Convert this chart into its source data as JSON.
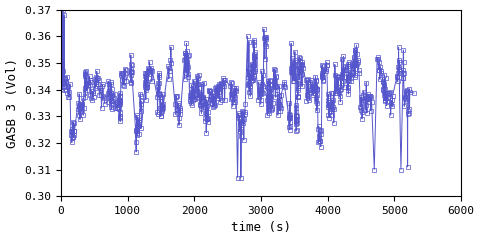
{
  "title": "",
  "xlabel": "time (s)",
  "ylabel": "GASB 3 (Vol)",
  "xlim": [
    0,
    6000
  ],
  "ylim": [
    0.3,
    0.37
  ],
  "xticks": [
    0,
    1000,
    2000,
    3000,
    4000,
    5000,
    6000
  ],
  "yticks": [
    0.3,
    0.31,
    0.32,
    0.33,
    0.34,
    0.35,
    0.36,
    0.37
  ],
  "line_color": "#5555cc",
  "marker": "s",
  "markersize": 2.5,
  "linewidth": 0.7,
  "background_color": "#ffffff",
  "font_family": "monospace",
  "seed": 7,
  "n_points": 2500,
  "t_max": 5300
}
